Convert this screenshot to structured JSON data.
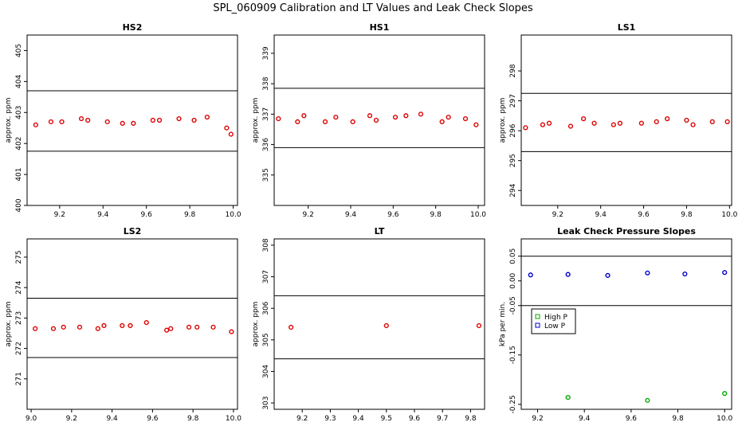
{
  "title": "SPL_060909  Calibration and LT Values and Leak Check Slopes",
  "colors": {
    "red": "#dd0000",
    "green": "#00aa00",
    "blue": "#0000cc",
    "black": "#000000"
  },
  "chart_data": [
    {
      "type": "scatter",
      "title": "HS2",
      "ylabel": "approx. ppm",
      "xlim": [
        9.05,
        10.02
      ],
      "ylim": [
        400,
        405.5
      ],
      "xticks": [
        9.2,
        9.4,
        9.6,
        9.8,
        10.0
      ],
      "xtick_labels": [
        "9.2",
        "9.4",
        "9.6",
        "9.8",
        "10.0"
      ],
      "yticks": [
        400,
        401,
        402,
        403,
        404,
        405
      ],
      "ytick_labels": [
        "400",
        "401",
        "402",
        "403",
        "404",
        "405"
      ],
      "hlines": [
        403.7,
        401.75
      ],
      "series": [
        {
          "color": "#dd0000",
          "x": [
            9.09,
            9.16,
            9.21,
            9.3,
            9.33,
            9.42,
            9.49,
            9.54,
            9.63,
            9.66,
            9.75,
            9.82,
            9.88,
            9.97,
            9.99
          ],
          "y": [
            402.6,
            402.7,
            402.7,
            402.8,
            402.75,
            402.7,
            402.65,
            402.65,
            402.75,
            402.75,
            402.8,
            402.75,
            402.85,
            402.5,
            402.3
          ]
        }
      ]
    },
    {
      "type": "scatter",
      "title": "HS1",
      "ylabel": "approx. ppm",
      "xlim": [
        9.04,
        10.03
      ],
      "ylim": [
        334,
        339.6
      ],
      "xticks": [
        9.2,
        9.4,
        9.6,
        9.8,
        10.0
      ],
      "xtick_labels": [
        "9.2",
        "9.4",
        "9.6",
        "9.8",
        "10.0"
      ],
      "yticks": [
        335,
        336,
        337,
        338,
        339
      ],
      "ytick_labels": [
        "335",
        "336",
        "337",
        "338",
        "339"
      ],
      "hlines": [
        337.85,
        335.9
      ],
      "series": [
        {
          "color": "#dd0000",
          "x": [
            9.06,
            9.15,
            9.18,
            9.28,
            9.33,
            9.41,
            9.49,
            9.52,
            9.61,
            9.66,
            9.73,
            9.83,
            9.86,
            9.94,
            9.99
          ],
          "y": [
            336.85,
            336.75,
            336.95,
            336.75,
            336.9,
            336.75,
            336.95,
            336.8,
            336.9,
            336.95,
            337.0,
            336.75,
            336.9,
            336.85,
            336.65
          ]
        }
      ]
    },
    {
      "type": "scatter",
      "title": "LS1",
      "ylabel": "approx. ppm",
      "xlim": [
        9.03,
        10.01
      ],
      "ylim": [
        293.5,
        299.2
      ],
      "xticks": [
        9.2,
        9.4,
        9.6,
        9.8,
        10.0
      ],
      "xtick_labels": [
        "9.2",
        "9.4",
        "9.6",
        "9.8",
        "10.0"
      ],
      "yticks": [
        294,
        295,
        296,
        297,
        298
      ],
      "ytick_labels": [
        "294",
        "295",
        "296",
        "297",
        "298"
      ],
      "hlines": [
        297.25,
        295.3
      ],
      "series": [
        {
          "color": "#dd0000",
          "x": [
            9.05,
            9.13,
            9.16,
            9.26,
            9.32,
            9.37,
            9.46,
            9.49,
            9.59,
            9.66,
            9.71,
            9.8,
            9.83,
            9.92,
            9.99
          ],
          "y": [
            296.1,
            296.2,
            296.25,
            296.15,
            296.4,
            296.25,
            296.2,
            296.25,
            296.25,
            296.3,
            296.4,
            296.35,
            296.2,
            296.3,
            296.3
          ]
        }
      ]
    },
    {
      "type": "scatter",
      "title": "LS2",
      "ylabel": "approx. ppm",
      "xlim": [
        8.98,
        10.02
      ],
      "ylim": [
        270,
        275.6
      ],
      "xticks": [
        9.0,
        9.2,
        9.4,
        9.6,
        9.8,
        10.0
      ],
      "xtick_labels": [
        "9.0",
        "9.2",
        "9.4",
        "9.6",
        "9.8",
        "10.0"
      ],
      "yticks": [
        271,
        272,
        273,
        274,
        275
      ],
      "ytick_labels": [
        "271",
        "272",
        "273",
        "274",
        "275"
      ],
      "hlines": [
        273.65,
        271.7
      ],
      "series": [
        {
          "color": "#dd0000",
          "x": [
            9.02,
            9.11,
            9.16,
            9.24,
            9.33,
            9.36,
            9.45,
            9.49,
            9.57,
            9.67,
            9.69,
            9.78,
            9.82,
            9.9,
            9.99
          ],
          "y": [
            272.65,
            272.65,
            272.7,
            272.7,
            272.65,
            272.75,
            272.75,
            272.75,
            272.85,
            272.6,
            272.65,
            272.7,
            272.7,
            272.7,
            272.55
          ]
        }
      ]
    },
    {
      "type": "scatter",
      "title": "LT",
      "ylabel": "approx. ppm",
      "xlim": [
        9.1,
        9.85
      ],
      "ylim": [
        302.8,
        308.2
      ],
      "xticks": [
        9.2,
        9.3,
        9.4,
        9.5,
        9.6,
        9.7,
        9.8
      ],
      "xtick_labels": [
        "9.2",
        "9.3",
        "9.4",
        "9.5",
        "9.6",
        "9.7",
        "9.8"
      ],
      "yticks": [
        303,
        304,
        305,
        306,
        307,
        308
      ],
      "ytick_labels": [
        "303",
        "304",
        "305",
        "306",
        "307",
        "308"
      ],
      "hlines": [
        306.4,
        304.4
      ],
      "series": [
        {
          "color": "#dd0000",
          "x": [
            9.16,
            9.5,
            9.83
          ],
          "y": [
            305.4,
            305.45,
            305.45
          ]
        }
      ]
    },
    {
      "type": "scatter",
      "title": "Leak Check Pressure Slopes",
      "ylabel": "kPa per min.",
      "xlim": [
        9.13,
        10.03
      ],
      "ylim": [
        -0.26,
        0.085
      ],
      "xticks": [
        9.2,
        9.4,
        9.6,
        9.8,
        10.0
      ],
      "xtick_labels": [
        "9.2",
        "9.4",
        "9.6",
        "9.8",
        "10.0"
      ],
      "yticks": [
        0.05,
        0.0,
        -0.05,
        -0.15,
        -0.25
      ],
      "ytick_labels": [
        "0.05",
        "0.00",
        "-0.05",
        "-0.15",
        "-0.25"
      ],
      "hlines": [
        0.05,
        -0.05
      ],
      "legend": {
        "position": "left",
        "entries": [
          {
            "name": "High P",
            "color": "#00aa00"
          },
          {
            "name": "Low P",
            "color": "#0000cc"
          }
        ]
      },
      "series": [
        {
          "name": "High P",
          "color": "#00aa00",
          "x": [
            9.33,
            9.67,
            10.0
          ],
          "y": [
            -0.236,
            -0.242,
            -0.228
          ]
        },
        {
          "name": "Low P",
          "color": "#0000cc",
          "x": [
            9.17,
            9.33,
            9.5,
            9.67,
            9.83,
            10.0
          ],
          "y": [
            0.012,
            0.013,
            0.011,
            0.016,
            0.014,
            0.017
          ]
        }
      ]
    }
  ]
}
